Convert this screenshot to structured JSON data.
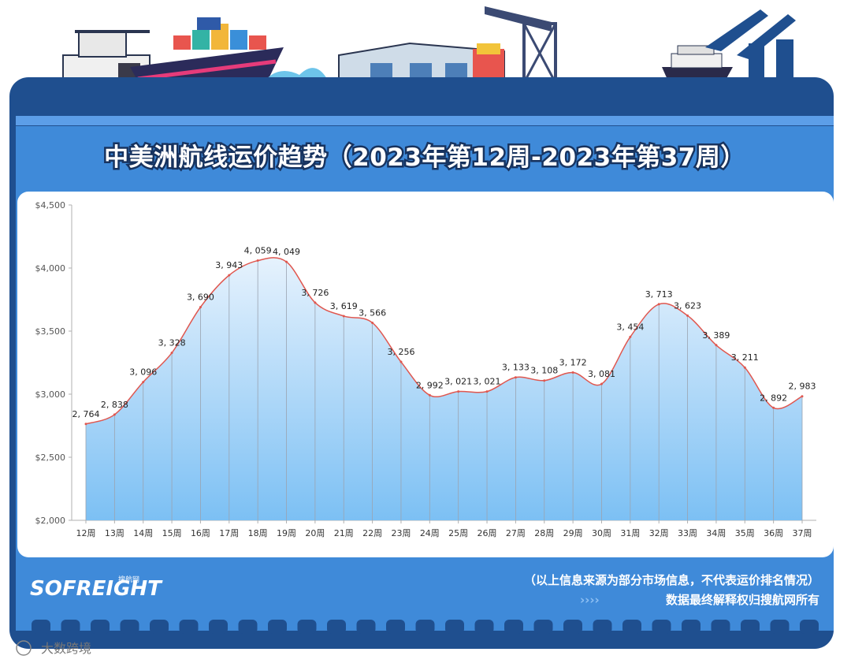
{
  "header": {
    "title": "中美洲航线运价趋势（2023年第12周-2023年第37周）"
  },
  "chart_data": {
    "type": "area",
    "title": "中美洲航线运价趋势（2023年第12周-2023年第37周）",
    "categories": [
      "12周",
      "13周",
      "14周",
      "15周",
      "16周",
      "17周",
      "18周",
      "19周",
      "20周",
      "21周",
      "22周",
      "23周",
      "24周",
      "25周",
      "26周",
      "27周",
      "28周",
      "29周",
      "30周",
      "31周",
      "32周",
      "33周",
      "34周",
      "35周",
      "36周",
      "37周"
    ],
    "values": [
      2764,
      2838,
      3096,
      3328,
      3690,
      3943,
      4059,
      4049,
      3726,
      3619,
      3566,
      3256,
      2992,
      3021,
      3021,
      3133,
      3108,
      3172,
      3081,
      3454,
      3713,
      3623,
      3389,
      3211,
      2892,
      2983
    ],
    "data_labels": [
      "2, 764",
      "2, 838",
      "3, 096",
      "3, 328",
      "3, 690",
      "3, 943",
      "4, 059",
      "4, 049",
      "3, 726",
      "3, 619",
      "3, 566",
      "3, 256",
      "2, 992",
      "3, 021",
      "3, 021",
      "3, 133",
      "3, 108",
      "3, 172",
      "3, 081",
      "3, 454",
      "3, 713",
      "3, 623",
      "3, 389",
      "3, 211",
      "2, 892",
      "2, 983"
    ],
    "y_ticks": [
      2000,
      2500,
      3000,
      3500,
      4000,
      4500
    ],
    "y_tick_labels": [
      "$2,000",
      "$2,500",
      "$3,000",
      "$3,500",
      "$4,000",
      "$4,500"
    ],
    "ylim": [
      2000,
      4500
    ],
    "xlabel": "",
    "ylabel": "",
    "grid": false,
    "colors": {
      "line": "#e0574f",
      "fill_top": "#cfe6fb",
      "fill_bottom": "#7cc0f4",
      "drop_line": "#9aa3b0"
    }
  },
  "footer": {
    "brand": "SOFREIGHT",
    "brand_sub": "搜航网",
    "note_line1": "（以上信息来源为部分市场信息，不代表运价排名情况）",
    "arrows": "››››",
    "note_line2": "数据最终解释权归搜航网所有"
  },
  "watermarks": {
    "bottom_left": "大数跨境"
  },
  "colors": {
    "frame_dark": "#1f4f8f",
    "frame_mid": "#3a80d0",
    "panel_blue": "#4a90dc",
    "title_stroke": "#17335f"
  }
}
